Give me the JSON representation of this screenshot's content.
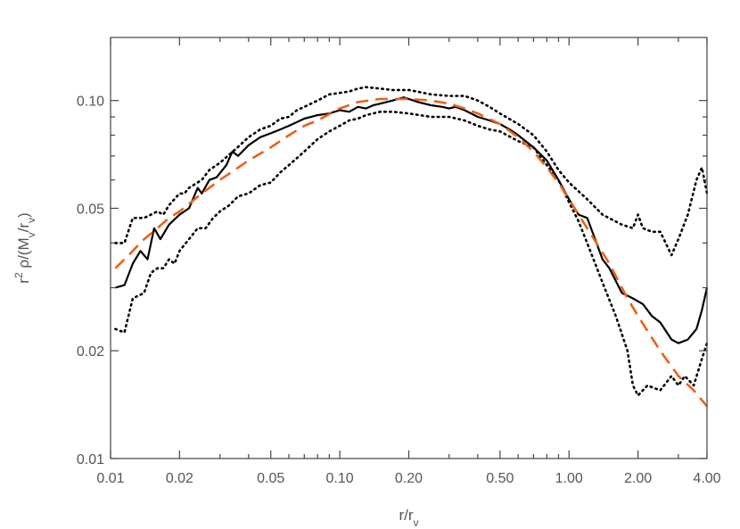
{
  "chart_data": {
    "type": "line",
    "title": "",
    "xlabel": "r/r_v",
    "ylabel": "r² ρ/(M_v/r_v)",
    "xscale": "log",
    "yscale": "log",
    "xlim": [
      0.01,
      4.0
    ],
    "ylim": [
      0.01,
      0.15
    ],
    "x_ticks": [
      0.01,
      0.02,
      0.05,
      0.1,
      0.2,
      0.5,
      1.0,
      2.0,
      4.0
    ],
    "x_tick_labels": [
      "0.01",
      "0.02",
      "0.05",
      "0.10",
      "0.20",
      "0.50",
      "1.00",
      "2.00",
      "4.00"
    ],
    "y_ticks": [
      0.01,
      0.02,
      0.05,
      0.1
    ],
    "y_tick_labels": [
      "0.01",
      "0.02",
      "0.05",
      "0.10"
    ],
    "grid": false,
    "legend": "none",
    "series": [
      {
        "style": "solid",
        "color": "#000000",
        "x": [
          0.0105,
          0.0115,
          0.0125,
          0.0135,
          0.0145,
          0.0155,
          0.0165,
          0.018,
          0.02,
          0.022,
          0.024,
          0.025,
          0.027,
          0.029,
          0.032,
          0.034,
          0.036,
          0.04,
          0.045,
          0.05,
          0.055,
          0.06,
          0.065,
          0.07,
          0.08,
          0.09,
          0.1,
          0.11,
          0.12,
          0.13,
          0.14,
          0.15,
          0.17,
          0.19,
          0.2,
          0.22,
          0.25,
          0.28,
          0.3,
          0.32,
          0.35,
          0.4,
          0.45,
          0.5,
          0.55,
          0.6,
          0.7,
          0.8,
          0.9,
          1.0,
          1.1,
          1.2,
          1.3,
          1.4,
          1.5,
          1.7,
          1.9,
          2.1,
          2.3,
          2.5,
          2.8,
          3.0,
          3.3,
          3.6,
          3.8,
          4.0
        ],
        "y": [
          0.03,
          0.0305,
          0.035,
          0.038,
          0.036,
          0.044,
          0.041,
          0.045,
          0.048,
          0.05,
          0.057,
          0.055,
          0.06,
          0.061,
          0.066,
          0.072,
          0.07,
          0.075,
          0.079,
          0.081,
          0.083,
          0.085,
          0.087,
          0.089,
          0.091,
          0.092,
          0.094,
          0.093,
          0.096,
          0.095,
          0.097,
          0.098,
          0.1,
          0.102,
          0.101,
          0.099,
          0.097,
          0.096,
          0.095,
          0.096,
          0.094,
          0.09,
          0.088,
          0.086,
          0.083,
          0.08,
          0.074,
          0.068,
          0.06,
          0.053,
          0.048,
          0.047,
          0.041,
          0.036,
          0.034,
          0.029,
          0.028,
          0.027,
          0.025,
          0.024,
          0.0215,
          0.021,
          0.0215,
          0.023,
          0.026,
          0.03
        ]
      },
      {
        "style": "dotted",
        "color": "#000000",
        "x": [
          0.0105,
          0.0115,
          0.0125,
          0.014,
          0.015,
          0.016,
          0.017,
          0.018,
          0.02,
          0.021,
          0.022,
          0.025,
          0.027,
          0.03,
          0.035,
          0.04,
          0.045,
          0.05,
          0.055,
          0.06,
          0.065,
          0.07,
          0.08,
          0.09,
          0.1,
          0.11,
          0.12,
          0.13,
          0.15,
          0.17,
          0.2,
          0.25,
          0.3,
          0.35,
          0.4,
          0.45,
          0.5,
          0.6,
          0.7,
          0.8,
          0.9,
          1.0,
          1.2,
          1.4,
          1.7,
          1.9,
          2.0,
          2.1,
          2.3,
          2.5,
          2.8,
          3.0,
          3.3,
          3.6,
          3.8,
          4.0
        ],
        "y": [
          0.04,
          0.04,
          0.047,
          0.047,
          0.048,
          0.049,
          0.048,
          0.051,
          0.055,
          0.055,
          0.057,
          0.06,
          0.064,
          0.067,
          0.073,
          0.079,
          0.083,
          0.085,
          0.089,
          0.09,
          0.094,
          0.096,
          0.1,
          0.104,
          0.105,
          0.106,
          0.108,
          0.109,
          0.108,
          0.107,
          0.107,
          0.104,
          0.103,
          0.103,
          0.1,
          0.096,
          0.092,
          0.086,
          0.08,
          0.072,
          0.064,
          0.059,
          0.053,
          0.048,
          0.045,
          0.044,
          0.048,
          0.044,
          0.043,
          0.043,
          0.037,
          0.041,
          0.048,
          0.06,
          0.065,
          0.055
        ]
      },
      {
        "style": "dotted",
        "color": "#000000",
        "x": [
          0.0105,
          0.0115,
          0.0125,
          0.014,
          0.015,
          0.016,
          0.017,
          0.018,
          0.019,
          0.02,
          0.022,
          0.024,
          0.026,
          0.028,
          0.03,
          0.033,
          0.036,
          0.04,
          0.045,
          0.05,
          0.055,
          0.06,
          0.07,
          0.08,
          0.09,
          0.1,
          0.11,
          0.12,
          0.13,
          0.15,
          0.17,
          0.2,
          0.25,
          0.3,
          0.35,
          0.4,
          0.45,
          0.5,
          0.6,
          0.7,
          0.8,
          0.9,
          1.0,
          1.1,
          1.2,
          1.4,
          1.6,
          1.8,
          1.9,
          2.0,
          2.2,
          2.5,
          2.8,
          3.0,
          3.2,
          3.5,
          3.8,
          4.0
        ],
        "y": [
          0.023,
          0.0225,
          0.028,
          0.029,
          0.033,
          0.034,
          0.034,
          0.036,
          0.035,
          0.038,
          0.041,
          0.044,
          0.044,
          0.047,
          0.049,
          0.051,
          0.054,
          0.055,
          0.058,
          0.059,
          0.063,
          0.066,
          0.072,
          0.078,
          0.082,
          0.085,
          0.088,
          0.089,
          0.091,
          0.093,
          0.093,
          0.092,
          0.09,
          0.09,
          0.088,
          0.085,
          0.083,
          0.082,
          0.077,
          0.074,
          0.066,
          0.06,
          0.052,
          0.046,
          0.04,
          0.031,
          0.025,
          0.02,
          0.016,
          0.015,
          0.016,
          0.0155,
          0.017,
          0.016,
          0.017,
          0.016,
          0.019,
          0.021
        ]
      },
      {
        "style": "dashed",
        "color": "#e8621a",
        "x": [
          0.0105,
          0.012,
          0.014,
          0.016,
          0.018,
          0.02,
          0.025,
          0.03,
          0.04,
          0.05,
          0.06,
          0.07,
          0.08,
          0.1,
          0.12,
          0.15,
          0.18,
          0.2,
          0.25,
          0.3,
          0.35,
          0.4,
          0.5,
          0.6,
          0.7,
          0.8,
          0.9,
          1.0,
          1.2,
          1.5,
          1.8,
          2.0,
          2.5,
          3.0,
          3.5,
          4.0
        ],
        "y": [
          0.034,
          0.037,
          0.041,
          0.044,
          0.047,
          0.049,
          0.055,
          0.06,
          0.068,
          0.074,
          0.08,
          0.085,
          0.088,
          0.095,
          0.099,
          0.101,
          0.101,
          0.101,
          0.1,
          0.098,
          0.095,
          0.092,
          0.086,
          0.079,
          0.072,
          0.065,
          0.059,
          0.053,
          0.044,
          0.035,
          0.028,
          0.025,
          0.02,
          0.017,
          0.0155,
          0.014
        ]
      }
    ]
  }
}
